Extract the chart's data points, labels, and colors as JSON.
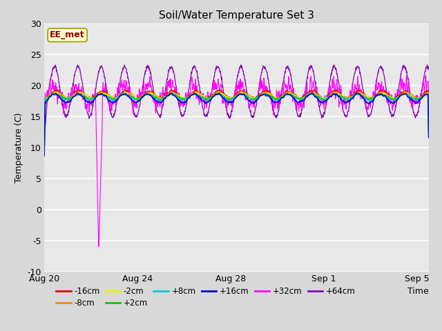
{
  "title": "Soil/Water Temperature Set 3",
  "xlabel": "Time",
  "ylabel": "Temperature (C)",
  "ylim": [
    -10,
    30
  ],
  "xlim_days": [
    0,
    16.5
  ],
  "background_color": "#e8e8e8",
  "plot_bg_color": "#e8e8e8",
  "fig_bg_color": "#d8d8d8",
  "grid_color": "#ffffff",
  "legend_label": "EE_met",
  "series": [
    {
      "label": "-16cm",
      "color": "#dd0000"
    },
    {
      "label": "-8cm",
      "color": "#ff8800"
    },
    {
      "label": "-2cm",
      "color": "#eeee00"
    },
    {
      "label": "+2cm",
      "color": "#00cc00"
    },
    {
      "label": "+8cm",
      "color": "#00cccc"
    },
    {
      "label": "+16cm",
      "color": "#0000cc"
    },
    {
      "label": "+32cm",
      "color": "#ff00ff"
    },
    {
      "label": "+64cm",
      "color": "#8800bb"
    }
  ],
  "yticks": [
    -10,
    -5,
    0,
    5,
    10,
    15,
    20,
    25,
    30
  ],
  "xtick_labels": [
    "Aug 20",
    "Aug 24",
    "Aug 28",
    "Sep 1",
    "Sep 5"
  ],
  "xtick_positions": [
    0,
    4,
    8,
    12,
    16
  ]
}
